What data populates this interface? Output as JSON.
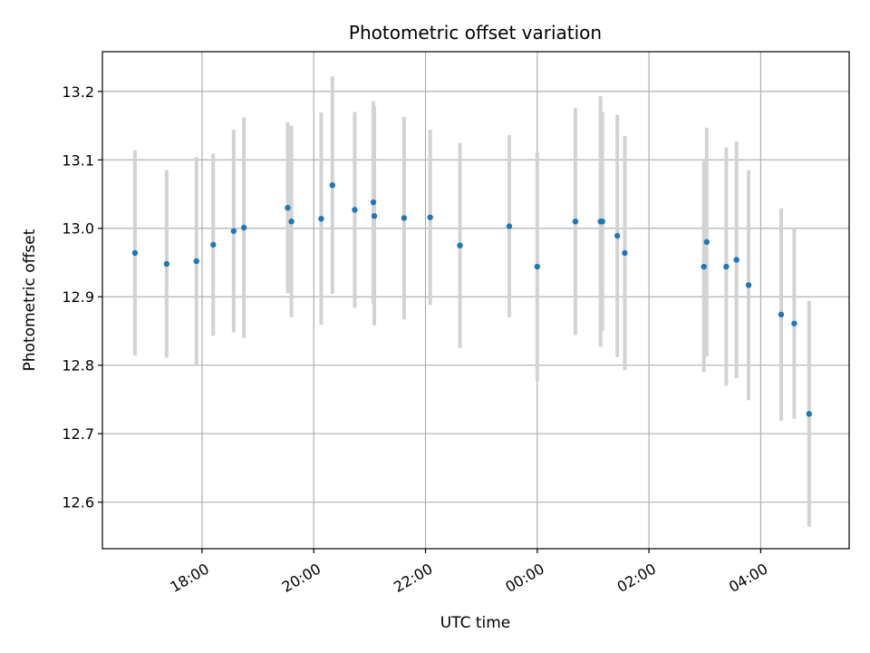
{
  "chart_data": {
    "type": "scatter",
    "title": "Photometric offset variation",
    "xlabel": "UTC time",
    "ylabel": "Photometric offset",
    "x_axis_kind": "time",
    "xlim": [
      "2019-01-01T16:13:00",
      "2019-01-02T05:35:00"
    ],
    "ylim": [
      12.532,
      13.258
    ],
    "x_ticks": [
      {
        "time": "2019-01-01T18:00:00",
        "label": "18:00"
      },
      {
        "time": "2019-01-01T20:00:00",
        "label": "20:00"
      },
      {
        "time": "2019-01-01T22:00:00",
        "label": "22:00"
      },
      {
        "time": "2019-01-02T00:00:00",
        "label": "00:00"
      },
      {
        "time": "2019-01-02T02:00:00",
        "label": "02:00"
      },
      {
        "time": "2019-01-02T04:00:00",
        "label": "04:00"
      }
    ],
    "y_ticks": [
      {
        "value": 12.6,
        "label": "12.6"
      },
      {
        "value": 12.7,
        "label": "12.7"
      },
      {
        "value": 12.8,
        "label": "12.8"
      },
      {
        "value": 12.9,
        "label": "12.9"
      },
      {
        "value": 13.0,
        "label": "13.0"
      },
      {
        "value": 13.1,
        "label": "13.1"
      },
      {
        "value": 13.2,
        "label": "13.2"
      }
    ],
    "grid": true,
    "legend": false,
    "colors": {
      "point": "#1f77b4",
      "errorbar": "#d3d3d3",
      "grid": "#b0b0b0"
    },
    "points": [
      {
        "time": "2019-01-01T16:48:00",
        "value": 12.964,
        "err": 0.15
      },
      {
        "time": "2019-01-01T17:22:00",
        "value": 12.948,
        "err": 0.137
      },
      {
        "time": "2019-01-01T17:54:00",
        "value": 12.952,
        "err": 0.152
      },
      {
        "time": "2019-01-01T18:12:00",
        "value": 12.976,
        "err": 0.133
      },
      {
        "time": "2019-01-01T18:34:00",
        "value": 12.996,
        "err": 0.148
      },
      {
        "time": "2019-01-01T18:45:00",
        "value": 13.001,
        "err": 0.161
      },
      {
        "time": "2019-01-01T19:32:00",
        "value": 13.03,
        "err": 0.125
      },
      {
        "time": "2019-01-01T19:36:00",
        "value": 13.01,
        "err": 0.14
      },
      {
        "time": "2019-01-01T20:08:00",
        "value": 13.014,
        "err": 0.155
      },
      {
        "time": "2019-01-01T20:20:00",
        "value": 13.063,
        "err": 0.159
      },
      {
        "time": "2019-01-01T20:44:00",
        "value": 13.027,
        "err": 0.143
      },
      {
        "time": "2019-01-01T21:04:00",
        "value": 13.038,
        "err": 0.148
      },
      {
        "time": "2019-01-01T21:05:00",
        "value": 13.018,
        "err": 0.16
      },
      {
        "time": "2019-01-01T21:37:00",
        "value": 13.015,
        "err": 0.148
      },
      {
        "time": "2019-01-01T22:05:00",
        "value": 13.016,
        "err": 0.128
      },
      {
        "time": "2019-01-01T22:37:00",
        "value": 12.975,
        "err": 0.15
      },
      {
        "time": "2019-01-01T23:30:00",
        "value": 13.003,
        "err": 0.133
      },
      {
        "time": "2019-01-02T00:00:00",
        "value": 12.944,
        "err": 0.167
      },
      {
        "time": "2019-01-02T00:41:00",
        "value": 13.01,
        "err": 0.166
      },
      {
        "time": "2019-01-02T01:08:00",
        "value": 13.01,
        "err": 0.183
      },
      {
        "time": "2019-01-02T01:10:00",
        "value": 13.01,
        "err": 0.16
      },
      {
        "time": "2019-01-02T01:26:00",
        "value": 12.989,
        "err": 0.177
      },
      {
        "time": "2019-01-02T01:34:00",
        "value": 12.964,
        "err": 0.171
      },
      {
        "time": "2019-01-02T02:59:00",
        "value": 12.944,
        "err": 0.154
      },
      {
        "time": "2019-01-02T03:02:00",
        "value": 12.98,
        "err": 0.167
      },
      {
        "time": "2019-01-02T03:23:00",
        "value": 12.944,
        "err": 0.174
      },
      {
        "time": "2019-01-02T03:34:00",
        "value": 12.954,
        "err": 0.173
      },
      {
        "time": "2019-01-02T03:47:00",
        "value": 12.917,
        "err": 0.168
      },
      {
        "time": "2019-01-02T04:22:00",
        "value": 12.874,
        "err": 0.155
      },
      {
        "time": "2019-01-02T04:36:00",
        "value": 12.861,
        "err": 0.139
      },
      {
        "time": "2019-01-02T04:52:00",
        "value": 12.729,
        "err": 0.165
      }
    ]
  }
}
